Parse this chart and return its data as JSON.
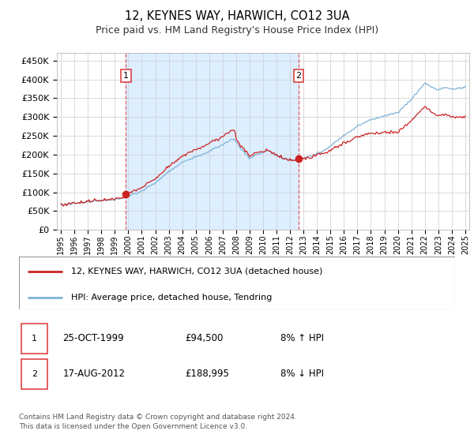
{
  "title": "12, KEYNES WAY, HARWICH, CO12 3UA",
  "subtitle": "Price paid vs. HM Land Registry's House Price Index (HPI)",
  "ylabel_ticks": [
    "£0",
    "£50K",
    "£100K",
    "£150K",
    "£200K",
    "£250K",
    "£300K",
    "£350K",
    "£400K",
    "£450K"
  ],
  "ytick_values": [
    0,
    50000,
    100000,
    150000,
    200000,
    250000,
    300000,
    350000,
    400000,
    450000
  ],
  "ylim": [
    0,
    470000
  ],
  "sale1_date": "25-OCT-1999",
  "sale1_price": 94500,
  "sale1_year": 1999.82,
  "sale2_date": "17-AUG-2012",
  "sale2_price": 188995,
  "sale2_year": 2012.63,
  "legend_line1": "12, KEYNES WAY, HARWICH, CO12 3UA (detached house)",
  "legend_line2": "HPI: Average price, detached house, Tendring",
  "footer": "Contains HM Land Registry data © Crown copyright and database right 2024.\nThis data is licensed under the Open Government Licence v3.0.",
  "hpi_color": "#7db4d8",
  "price_color": "#cc2222",
  "shade_color": "#ddeeff",
  "dashed_line_color": "#dd4444",
  "background_color": "#ffffff",
  "grid_color": "#cccccc",
  "sale1_pct": "8% ↑ HPI",
  "sale2_pct": "8% ↓ HPI"
}
